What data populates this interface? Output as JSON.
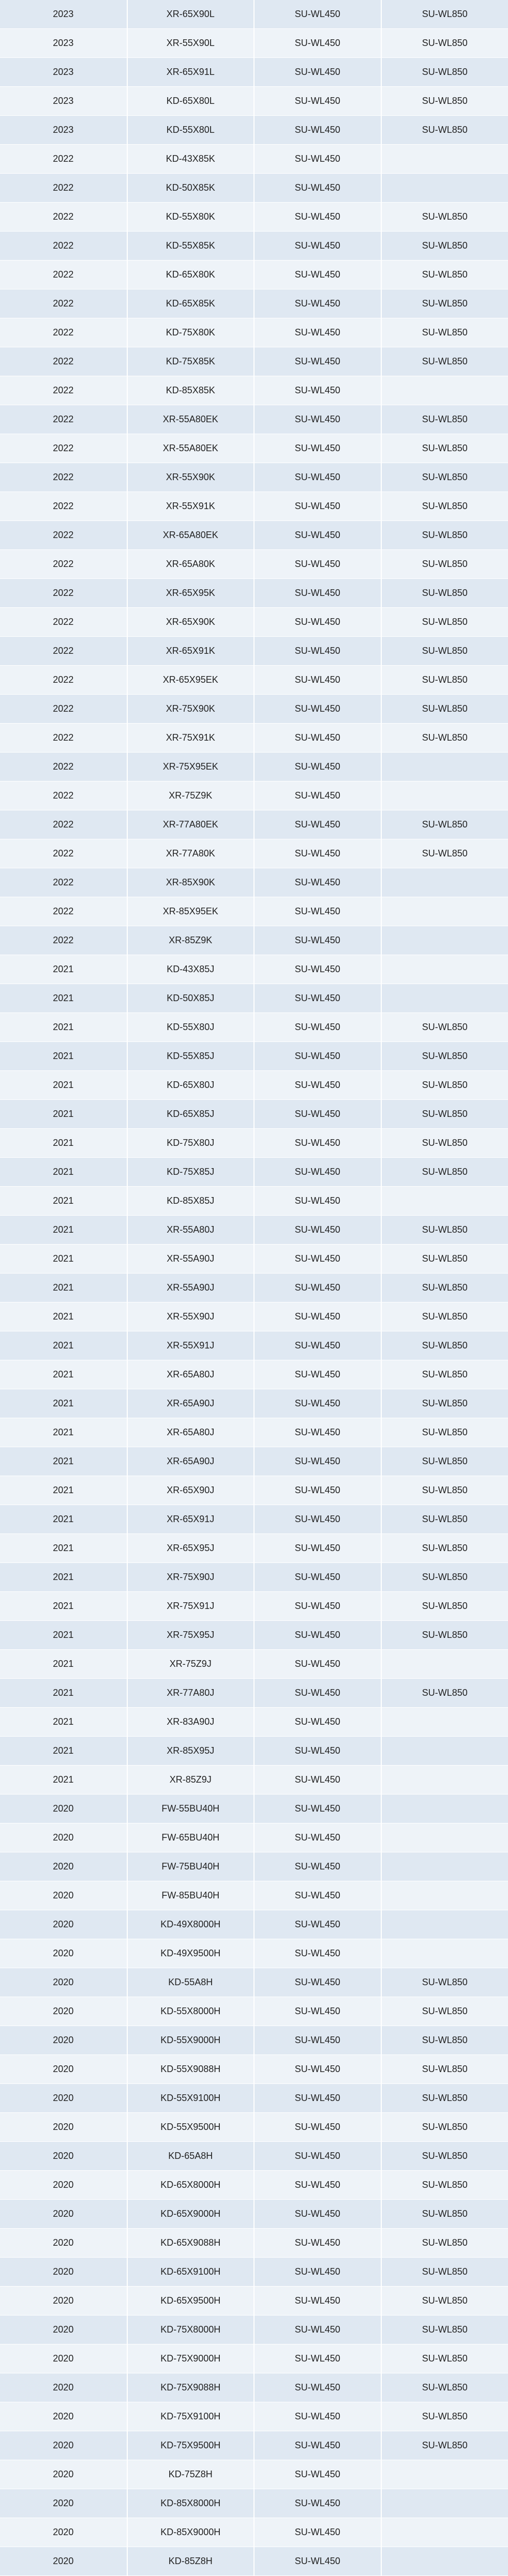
{
  "table": {
    "rows": [
      [
        "2023",
        "XR-65X90L",
        "SU-WL450",
        "SU-WL850"
      ],
      [
        "2023",
        "XR-55X90L",
        "SU-WL450",
        "SU-WL850"
      ],
      [
        "2023",
        "XR-65X91L",
        "SU-WL450",
        "SU-WL850"
      ],
      [
        "2023",
        "KD-65X80L",
        "SU-WL450",
        "SU-WL850"
      ],
      [
        "2023",
        "KD-55X80L",
        "SU-WL450",
        "SU-WL850"
      ],
      [
        "2022",
        "KD-43X85K",
        "SU-WL450",
        ""
      ],
      [
        "2022",
        "KD-50X85K",
        "SU-WL450",
        ""
      ],
      [
        "2022",
        "KD-55X80K",
        "SU-WL450",
        "SU-WL850"
      ],
      [
        "2022",
        "KD-55X85K",
        "SU-WL450",
        "SU-WL850"
      ],
      [
        "2022",
        "KD-65X80K",
        "SU-WL450",
        "SU-WL850"
      ],
      [
        "2022",
        "KD-65X85K",
        "SU-WL450",
        "SU-WL850"
      ],
      [
        "2022",
        "KD-75X80K",
        "SU-WL450",
        "SU-WL850"
      ],
      [
        "2022",
        "KD-75X85K",
        "SU-WL450",
        "SU-WL850"
      ],
      [
        "2022",
        "KD-85X85K",
        "SU-WL450",
        ""
      ],
      [
        "2022",
        "XR-55A80EK",
        "SU-WL450",
        "SU-WL850"
      ],
      [
        "2022",
        "XR-55A80EK",
        "SU-WL450",
        "SU-WL850"
      ],
      [
        "2022",
        "XR-55X90K",
        "SU-WL450",
        "SU-WL850"
      ],
      [
        "2022",
        "XR-55X91K",
        "SU-WL450",
        "SU-WL850"
      ],
      [
        "2022",
        "XR-65A80EK",
        "SU-WL450",
        "SU-WL850"
      ],
      [
        "2022",
        "XR-65A80K",
        "SU-WL450",
        "SU-WL850"
      ],
      [
        "2022",
        "XR-65X95K",
        "SU-WL450",
        "SU-WL850"
      ],
      [
        "2022",
        "XR-65X90K",
        "SU-WL450",
        "SU-WL850"
      ],
      [
        "2022",
        "XR-65X91K",
        "SU-WL450",
        "SU-WL850"
      ],
      [
        "2022",
        "XR-65X95EK",
        "SU-WL450",
        "SU-WL850"
      ],
      [
        "2022",
        "XR-75X90K",
        "SU-WL450",
        "SU-WL850"
      ],
      [
        "2022",
        "XR-75X91K",
        "SU-WL450",
        "SU-WL850"
      ],
      [
        "2022",
        "XR-75X95EK",
        "SU-WL450",
        ""
      ],
      [
        "2022",
        "XR-75Z9K",
        "SU-WL450",
        ""
      ],
      [
        "2022",
        "XR-77A80EK",
        "SU-WL450",
        "SU-WL850"
      ],
      [
        "2022",
        "XR-77A80K",
        "SU-WL450",
        "SU-WL850"
      ],
      [
        "2022",
        "XR-85X90K",
        "SU-WL450",
        ""
      ],
      [
        "2022",
        "XR-85X95EK",
        "SU-WL450",
        ""
      ],
      [
        "2022",
        "XR-85Z9K",
        "SU-WL450",
        ""
      ],
      [
        "2021",
        "KD-43X85J",
        "SU-WL450",
        ""
      ],
      [
        "2021",
        "KD-50X85J",
        "SU-WL450",
        ""
      ],
      [
        "2021",
        "KD-55X80J",
        "SU-WL450",
        "SU-WL850"
      ],
      [
        "2021",
        "KD-55X85J",
        "SU-WL450",
        "SU-WL850"
      ],
      [
        "2021",
        "KD-65X80J",
        "SU-WL450",
        "SU-WL850"
      ],
      [
        "2021",
        "KD-65X85J",
        "SU-WL450",
        "SU-WL850"
      ],
      [
        "2021",
        "KD-75X80J",
        "SU-WL450",
        "SU-WL850"
      ],
      [
        "2021",
        "KD-75X85J",
        "SU-WL450",
        "SU-WL850"
      ],
      [
        "2021",
        "KD-85X85J",
        "SU-WL450",
        ""
      ],
      [
        "2021",
        "XR-55A80J",
        "SU-WL450",
        "SU-WL850"
      ],
      [
        "2021",
        "XR-55A90J",
        "SU-WL450",
        "SU-WL850"
      ],
      [
        "2021",
        "XR-55A90J",
        "SU-WL450",
        "SU-WL850"
      ],
      [
        "2021",
        "XR-55X90J",
        "SU-WL450",
        "SU-WL850"
      ],
      [
        "2021",
        "XR-55X91J",
        "SU-WL450",
        "SU-WL850"
      ],
      [
        "2021",
        "XR-65A80J",
        "SU-WL450",
        "SU-WL850"
      ],
      [
        "2021",
        "XR-65A90J",
        "SU-WL450",
        "SU-WL850"
      ],
      [
        "2021",
        "XR-65A80J",
        "SU-WL450",
        "SU-WL850"
      ],
      [
        "2021",
        "XR-65A90J",
        "SU-WL450",
        "SU-WL850"
      ],
      [
        "2021",
        "XR-65X90J",
        "SU-WL450",
        "SU-WL850"
      ],
      [
        "2021",
        "XR-65X91J",
        "SU-WL450",
        "SU-WL850"
      ],
      [
        "2021",
        "XR-65X95J",
        "SU-WL450",
        "SU-WL850"
      ],
      [
        "2021",
        "XR-75X90J",
        "SU-WL450",
        "SU-WL850"
      ],
      [
        "2021",
        "XR-75X91J",
        "SU-WL450",
        "SU-WL850"
      ],
      [
        "2021",
        "XR-75X95J",
        "SU-WL450",
        "SU-WL850"
      ],
      [
        "2021",
        "XR-75Z9J",
        "SU-WL450",
        ""
      ],
      [
        "2021",
        "XR-77A80J",
        "SU-WL450",
        "SU-WL850"
      ],
      [
        "2021",
        "XR-83A90J",
        "SU-WL450",
        ""
      ],
      [
        "2021",
        "XR-85X95J",
        "SU-WL450",
        ""
      ],
      [
        "2021",
        "XR-85Z9J",
        "SU-WL450",
        ""
      ],
      [
        "2020",
        "FW-55BU40H",
        "SU-WL450",
        ""
      ],
      [
        "2020",
        "FW-65BU40H",
        "SU-WL450",
        ""
      ],
      [
        "2020",
        "FW-75BU40H",
        "SU-WL450",
        ""
      ],
      [
        "2020",
        "FW-85BU40H",
        "SU-WL450",
        ""
      ],
      [
        "2020",
        "KD-49X8000H",
        "SU-WL450",
        ""
      ],
      [
        "2020",
        "KD-49X9500H",
        "SU-WL450",
        ""
      ],
      [
        "2020",
        "KD-55A8H",
        "SU-WL450",
        "SU-WL850"
      ],
      [
        "2020",
        "KD-55X8000H",
        "SU-WL450",
        "SU-WL850"
      ],
      [
        "2020",
        "KD-55X9000H",
        "SU-WL450",
        "SU-WL850"
      ],
      [
        "2020",
        "KD-55X9088H",
        "SU-WL450",
        "SU-WL850"
      ],
      [
        "2020",
        "KD-55X9100H",
        "SU-WL450",
        "SU-WL850"
      ],
      [
        "2020",
        "KD-55X9500H",
        "SU-WL450",
        "SU-WL850"
      ],
      [
        "2020",
        "KD-65A8H",
        "SU-WL450",
        "SU-WL850"
      ],
      [
        "2020",
        "KD-65X8000H",
        "SU-WL450",
        "SU-WL850"
      ],
      [
        "2020",
        "KD-65X9000H",
        "SU-WL450",
        "SU-WL850"
      ],
      [
        "2020",
        "KD-65X9088H",
        "SU-WL450",
        "SU-WL850"
      ],
      [
        "2020",
        "KD-65X9100H",
        "SU-WL450",
        "SU-WL850"
      ],
      [
        "2020",
        "KD-65X9500H",
        "SU-WL450",
        "SU-WL850"
      ],
      [
        "2020",
        "KD-75X8000H",
        "SU-WL450",
        "SU-WL850"
      ],
      [
        "2020",
        "KD-75X9000H",
        "SU-WL450",
        "SU-WL850"
      ],
      [
        "2020",
        "KD-75X9088H",
        "SU-WL450",
        "SU-WL850"
      ],
      [
        "2020",
        "KD-75X9100H",
        "SU-WL450",
        "SU-WL850"
      ],
      [
        "2020",
        "KD-75X9500H",
        "SU-WL450",
        "SU-WL850"
      ],
      [
        "2020",
        "KD-75Z8H",
        "SU-WL450",
        ""
      ],
      [
        "2020",
        "KD-85X8000H",
        "SU-WL450",
        ""
      ],
      [
        "2020",
        "KD-85X9000H",
        "SU-WL450",
        ""
      ],
      [
        "2020",
        "KD-85Z8H",
        "SU-WL450",
        ""
      ]
    ]
  }
}
